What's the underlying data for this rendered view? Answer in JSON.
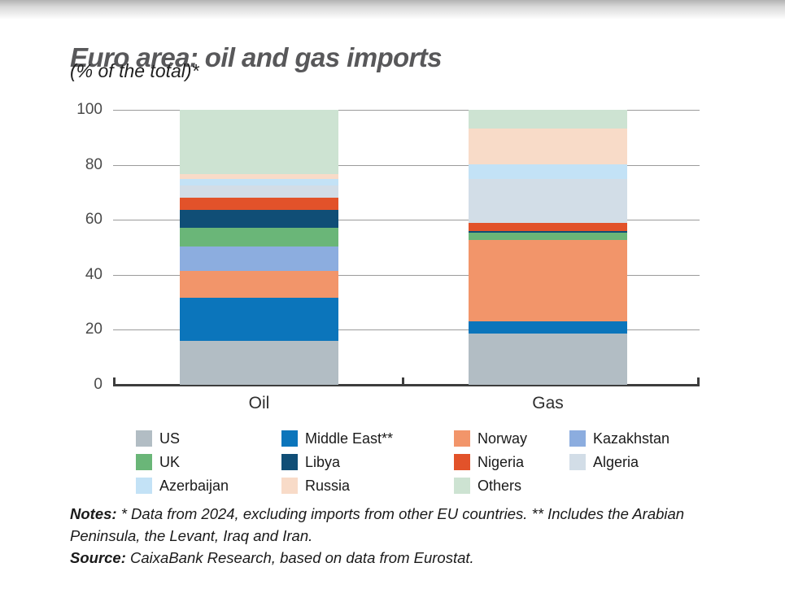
{
  "page": {
    "title": "Euro area: oil and gas imports",
    "subtitle": "(% of the total)*"
  },
  "chart_data": {
    "type": "bar",
    "stacked": true,
    "title": "Euro area: oil and gas imports",
    "subtitle": "(% of the total)*",
    "categories": [
      "Oil",
      "Gas"
    ],
    "series": [
      {
        "name": "US",
        "color": "#b2bdc4",
        "values": [
          16.0,
          18.6
        ]
      },
      {
        "name": "Middle East**",
        "color": "#0b75bb",
        "values": [
          15.7,
          4.6
        ]
      },
      {
        "name": "Norway",
        "color": "#f2956a",
        "values": [
          9.8,
          29.6
        ]
      },
      {
        "name": "Kazakhstan",
        "color": "#8caddf",
        "values": [
          8.9,
          0.0
        ]
      },
      {
        "name": "UK",
        "color": "#6ab678",
        "values": [
          6.7,
          2.4
        ]
      },
      {
        "name": "Libya",
        "color": "#104e76",
        "values": [
          6.4,
          0.8
        ]
      },
      {
        "name": "Nigeria",
        "color": "#e2522a",
        "values": [
          4.6,
          2.8
        ]
      },
      {
        "name": "Algeria",
        "color": "#d2dde7",
        "values": [
          4.3,
          16.1
        ]
      },
      {
        "name": "Azerbaijan",
        "color": "#c3e2f6",
        "values": [
          2.4,
          5.3
        ]
      },
      {
        "name": "Russia",
        "color": "#f8dbc8",
        "values": [
          1.8,
          13.0
        ]
      },
      {
        "name": "Others",
        "color": "#cde3d2",
        "values": [
          23.4,
          6.8
        ]
      }
    ],
    "ylim": [
      0,
      100
    ],
    "yticks": [
      0,
      20,
      40,
      60,
      80,
      100
    ],
    "grid": true,
    "grid_color": "#9b9b9b",
    "axis_color": "#3d3d3d",
    "legend_position": "bottom"
  },
  "notes": {
    "notes_label": "Notes:",
    "notes_text": "* Data from 2024, excluding imports from other EU countries. ** Includes the Arabian Peninsula, the Levant, Iraq and Iran.",
    "source_label": "Source:",
    "source_text": "CaixaBank Research, based on data from Eurostat."
  }
}
